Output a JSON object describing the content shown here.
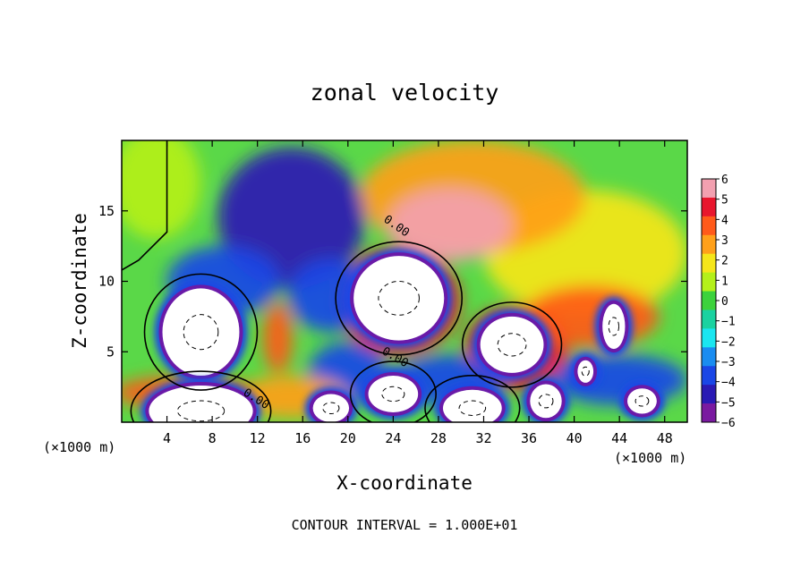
{
  "chart_data": {
    "type": "heatmap",
    "title": "zonal velocity",
    "xlabel": "X-coordinate",
    "ylabel": "Z-coordinate",
    "x_unit_left": "(×1000 m)",
    "x_unit_right": "(×1000 m)",
    "xlim": [
      0,
      50
    ],
    "ylim": [
      0,
      20
    ],
    "x_ticks": [
      4,
      8,
      12,
      16,
      20,
      24,
      28,
      32,
      36,
      40,
      44,
      48
    ],
    "y_ticks": [
      5,
      10,
      15
    ],
    "contour_interval_text": "CONTOUR INTERVAL = 1.000E+01",
    "contour_labels": [
      "0.00",
      "0.00",
      "0.00"
    ],
    "colorbar": {
      "range": [
        -6,
        6
      ],
      "ticks": [
        6,
        5,
        4,
        3,
        2,
        1,
        0,
        -1,
        -2,
        -3,
        -4,
        -5,
        -6
      ],
      "colors": [
        "#f2a0b0",
        "#e8162d",
        "#ff5a1a",
        "#ffa01a",
        "#f5e61a",
        "#b4f01a",
        "#3cd23c",
        "#1ad2a0",
        "#1ae6f0",
        "#1a8cf0",
        "#1a46e6",
        "#2a1ab4",
        "#7a1aa0"
      ]
    },
    "features": [
      {
        "type": "blob",
        "x": 24.5,
        "z": 8.8,
        "rx": 4.0,
        "rz": 3.0,
        "value": -6,
        "sat": true
      },
      {
        "type": "blob",
        "x": 7.0,
        "z": 6.4,
        "rx": 3.4,
        "rz": 3.1,
        "value": -6,
        "sat": true
      },
      {
        "type": "blob",
        "x": 7.0,
        "z": 0.8,
        "rx": 4.6,
        "rz": 1.8,
        "value": -6,
        "sat": true
      },
      {
        "type": "blob",
        "x": 34.5,
        "z": 5.5,
        "rx": 2.8,
        "rz": 2.0,
        "value": -6,
        "sat": true
      },
      {
        "type": "blob",
        "x": 43.5,
        "z": 6.8,
        "rx": 1.0,
        "rz": 1.6,
        "value": -6,
        "sat": true
      },
      {
        "type": "blob",
        "x": 31.0,
        "z": 1.0,
        "rx": 2.6,
        "rz": 1.3,
        "value": -6,
        "sat": true
      },
      {
        "type": "blob",
        "x": 24.0,
        "z": 2.0,
        "rx": 2.2,
        "rz": 1.3,
        "value": -6,
        "sat": true
      },
      {
        "type": "blob",
        "x": 18.5,
        "z": 1.0,
        "rx": 1.6,
        "rz": 1.0,
        "value": -6,
        "sat": true
      },
      {
        "type": "blob",
        "x": 37.5,
        "z": 1.5,
        "rx": 1.4,
        "rz": 1.2,
        "value": -6,
        "sat": true
      },
      {
        "type": "blob",
        "x": 46.0,
        "z": 1.5,
        "rx": 1.3,
        "rz": 0.9,
        "value": -6,
        "sat": true
      },
      {
        "type": "blob",
        "x": 41.0,
        "z": 3.6,
        "rx": 0.7,
        "rz": 0.8,
        "value": -6,
        "sat": true
      },
      {
        "type": "blob",
        "x": 29.0,
        "z": 14.0,
        "rx": 5.5,
        "rz": 2.6,
        "value": 6
      },
      {
        "type": "blob",
        "x": 24.5,
        "z": 8.6,
        "rx": 5.4,
        "rz": 3.8,
        "value": 5
      },
      {
        "type": "blob",
        "x": 35.0,
        "z": 5.3,
        "rx": 4.6,
        "rz": 3.0,
        "value": 5
      },
      {
        "type": "blob",
        "x": 41.5,
        "z": 7.5,
        "rx": 6.0,
        "rz": 2.2,
        "value": 4.5
      },
      {
        "type": "blob",
        "x": 13.8,
        "z": 6.0,
        "rx": 1.3,
        "rz": 2.5,
        "value": 4.5
      },
      {
        "type": "blob",
        "x": 15.0,
        "z": 1.8,
        "rx": 5.0,
        "rz": 1.5,
        "value": 3.5
      },
      {
        "type": "blob",
        "x": 5.5,
        "z": 2.1,
        "rx": 6.2,
        "rz": 1.2,
        "value": 4
      },
      {
        "type": "blob",
        "x": 31.0,
        "z": 16.0,
        "rx": 10.0,
        "rz": 4.0,
        "value": 3
      },
      {
        "type": "blob",
        "x": 41.0,
        "z": 12.0,
        "rx": 9.0,
        "rz": 4.5,
        "value": 2.5
      },
      {
        "type": "blob",
        "x": 15.0,
        "z": 14.5,
        "rx": 6.5,
        "rz": 5.0,
        "value": -4.5
      },
      {
        "type": "blob",
        "x": 9.0,
        "z": 10.0,
        "rx": 5.0,
        "rz": 2.5,
        "value": -4
      },
      {
        "type": "blob",
        "x": 18.5,
        "z": 9.0,
        "rx": 3.8,
        "rz": 2.6,
        "value": -3.5
      },
      {
        "type": "blob",
        "x": 20.0,
        "z": 3.5,
        "rx": 3.5,
        "rz": 2.2,
        "value": -4
      },
      {
        "type": "blob",
        "x": 29.0,
        "z": 3.0,
        "rx": 5.0,
        "rz": 1.8,
        "value": -4
      },
      {
        "type": "blob",
        "x": 44.0,
        "z": 3.0,
        "rx": 6.0,
        "rz": 1.8,
        "value": -4
      },
      {
        "type": "blob",
        "x": 3.0,
        "z": 17.0,
        "rx": 4.0,
        "rz": 4.0,
        "value": 1
      }
    ]
  }
}
